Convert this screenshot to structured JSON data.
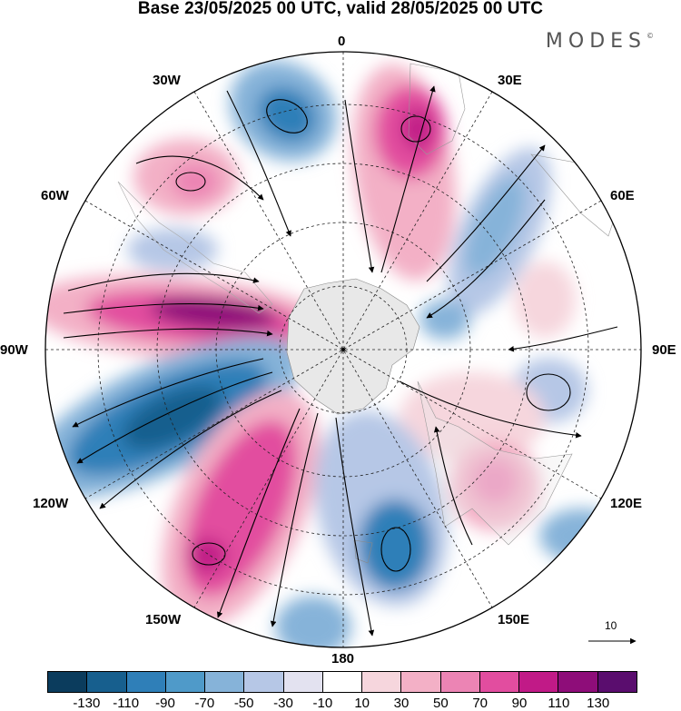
{
  "header": {
    "title": "Base 23/05/2025 00 UTC, valid 28/05/2025 00 UTC",
    "brand": "MODES",
    "brand_mark": "©"
  },
  "map": {
    "projection": "south-polar-stereographic",
    "longitude_labels": {
      "top": "0",
      "top_right": "30E",
      "upper_right": "60E",
      "right": "90E",
      "lower_right": "120E",
      "bottom_right": "150E",
      "bottom": "180",
      "bottom_left": "150W",
      "lower_left": "120W",
      "left": "90W",
      "upper_left": "60W",
      "top_left": "30W"
    },
    "reference_vector_label": "10",
    "colorbar": {
      "colors": [
        "#0b3c5d",
        "#175f8e",
        "#2f7fb8",
        "#4f9ac9",
        "#86b3d9",
        "#b6c7e6",
        "#e3e2f0",
        "#ffffff",
        "#f6d6dd",
        "#f3b0c6",
        "#ec84b4",
        "#e24d9f",
        "#c11a87",
        "#8e0d79",
        "#5a0d6e"
      ],
      "tick_labels": [
        "-130",
        "-110",
        "-90",
        "-70",
        "-50",
        "-30",
        "-10",
        "10",
        "30",
        "50",
        "70",
        "90",
        "110",
        "130"
      ]
    }
  }
}
